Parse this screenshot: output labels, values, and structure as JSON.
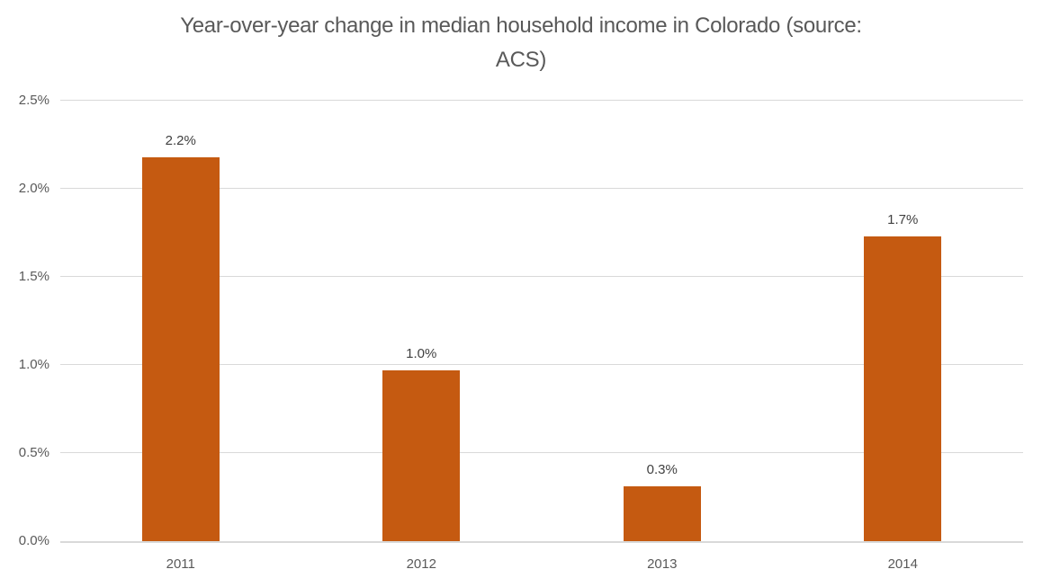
{
  "chart_data": {
    "type": "bar",
    "title": "Year-over-year change in median household income in Colorado (source: ACS)",
    "title_lines": [
      "Year-over-year change in median household income in Colorado (source:",
      "ACS)"
    ],
    "categories": [
      "2011",
      "2012",
      "2013",
      "2014"
    ],
    "values": [
      2.18,
      0.97,
      0.31,
      1.73
    ],
    "data_labels": [
      "2.2%",
      "1.0%",
      "0.3%",
      "1.7%"
    ],
    "xlabel": "",
    "ylabel": "",
    "ylim": [
      0,
      2.5
    ],
    "ytick_interval": 0.5,
    "ytick_labels": [
      "0.0%",
      "0.5%",
      "1.0%",
      "1.5%",
      "2.0%",
      "2.5%"
    ],
    "grid": true,
    "legend": "none",
    "colors": {
      "bar": "#C55A11",
      "gridline": "#D9D9D9",
      "axis_line": "#D9D9D9",
      "title_text": "#595959",
      "tick_text": "#595959",
      "data_label_text": "#404040",
      "background": "#FFFFFF"
    }
  }
}
